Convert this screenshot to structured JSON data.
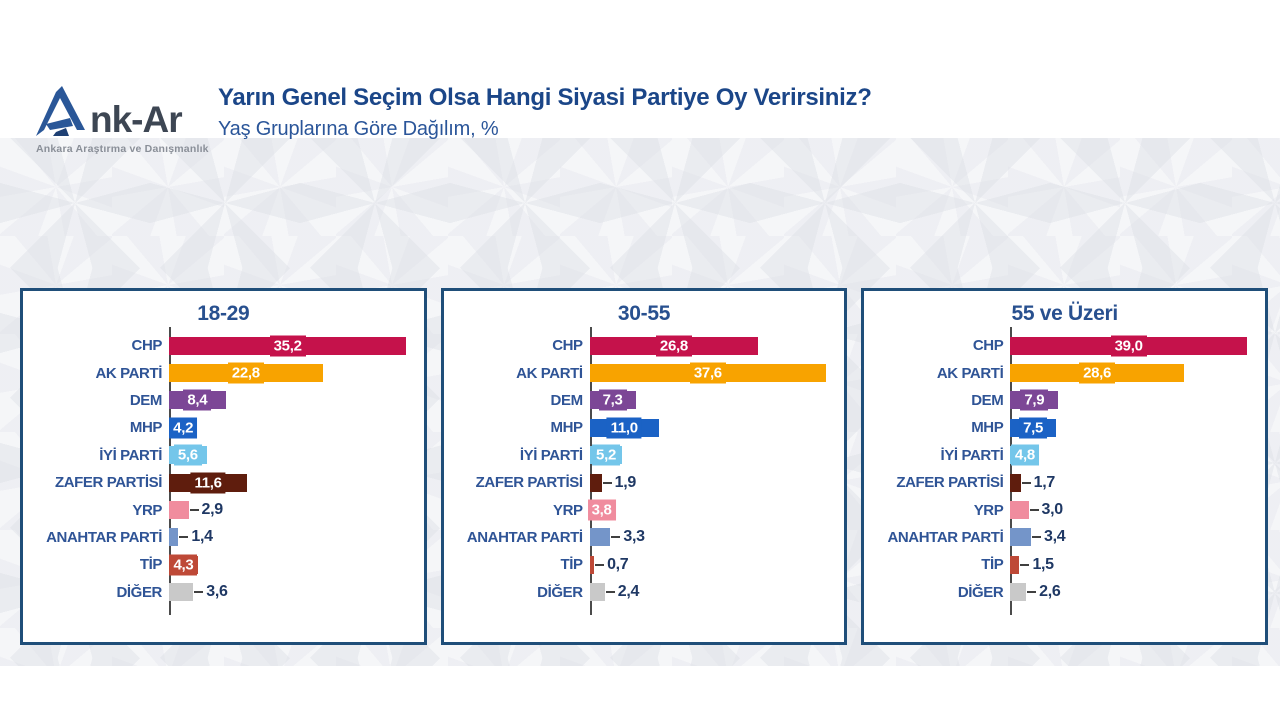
{
  "header": {
    "logo": {
      "brand": "Ank-Ar",
      "brand_rest": "nk-Ar",
      "tagline": "Ankara Araştırma ve Danışmanlık"
    },
    "title": "Yarın Genel Seçim Olsa Hangi Siyasi Partiye Oy Verirsiniz?",
    "subtitle": "Yaş Gruplarına Göre Dağılım, %"
  },
  "colors": {
    "panel_border": "#1f4e79",
    "panel_title": "#28508f",
    "party_label": "#2f5496",
    "value_outside": "#1f3864",
    "axis": "#4b4b4b",
    "title": "#1b4688"
  },
  "chart_data": {
    "type": "bar",
    "orientation": "horizontal",
    "unit": "%",
    "title": "Yarın Genel Seçim Olsa Hangi Siyasi Partiye Oy Verirsiniz?",
    "subtitle": "Yaş Gruplarına Göre Dağılım, %",
    "categories": [
      "CHP",
      "AK PARTİ",
      "DEM",
      "MHP",
      "İYİ PARTİ",
      "ZAFER PARTİSİ",
      "YRP",
      "ANAHTAR PARTİ",
      "TİP",
      "DİĞER"
    ],
    "category_colors": [
      "#c5124b",
      "#f8a300",
      "#7c4796",
      "#1b62c5",
      "#74c6ea",
      "#5f1d0d",
      "#f08c9e",
      "#7495c9",
      "#be4937",
      "#c9c9c9"
    ],
    "panels": [
      {
        "title": "18-29",
        "axis_max": 36,
        "values": [
          35.2,
          22.8,
          8.4,
          4.2,
          5.6,
          11.6,
          2.9,
          1.4,
          4.3,
          3.6
        ],
        "labels": [
          "35,2",
          "22,8",
          "8,4",
          "4,2",
          "5,6",
          "11,6",
          "2,9",
          "1,4",
          "4,3",
          "3,6"
        ],
        "label_inside": [
          true,
          true,
          true,
          true,
          true,
          true,
          false,
          false,
          true,
          false
        ]
      },
      {
        "title": "30-55",
        "axis_max": 38.6,
        "values": [
          26.8,
          37.6,
          7.3,
          11.0,
          5.2,
          1.9,
          3.8,
          3.3,
          0.7,
          2.4
        ],
        "labels": [
          "26,8",
          "37,6",
          "7,3",
          "11,0",
          "5,2",
          "1,9",
          "3,8",
          "3,3",
          "0,7",
          "2,4"
        ],
        "label_inside": [
          true,
          true,
          true,
          true,
          true,
          false,
          true,
          false,
          false,
          false
        ]
      },
      {
        "title": "55 ve Üzeri",
        "axis_max": 40,
        "values": [
          39.0,
          28.6,
          7.9,
          7.5,
          4.8,
          1.7,
          3.0,
          3.4,
          1.5,
          2.6
        ],
        "labels": [
          "39,0",
          "28,6",
          "7,9",
          "7,5",
          "4,8",
          "1,7",
          "3,0",
          "3,4",
          "1,5",
          "2,6"
        ],
        "label_inside": [
          true,
          true,
          true,
          true,
          true,
          false,
          false,
          false,
          false,
          false
        ]
      }
    ]
  }
}
